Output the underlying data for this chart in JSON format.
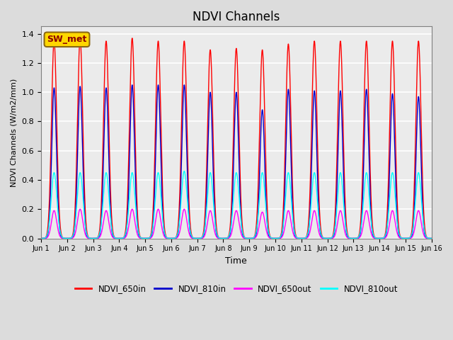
{
  "title": "NDVI Channels",
  "xlabel": "Time",
  "ylabel": "NDVI Channels (W/m2/mm)",
  "annotation_text": "SW_met",
  "annotation_color": "#8B0000",
  "annotation_bg": "#FFD700",
  "legend_labels": [
    "NDVI_650in",
    "NDVI_810in",
    "NDVI_650out",
    "NDVI_810out"
  ],
  "line_colors": [
    "#FF0000",
    "#0000CC",
    "#FF00FF",
    "#00FFFF"
  ],
  "ylim": [
    0,
    1.45
  ],
  "num_days": 15,
  "sigma_650in": 0.1,
  "sigma_810in": 0.09,
  "sigma_650out": 0.1,
  "sigma_810out": 0.11,
  "peak_650in": [
    1.35,
    1.37,
    1.35,
    1.37,
    1.35,
    1.35,
    1.29,
    1.3,
    1.29,
    1.33,
    1.35,
    1.35,
    1.35,
    1.35,
    1.35
  ],
  "peak_810in": [
    1.03,
    1.04,
    1.03,
    1.05,
    1.05,
    1.05,
    1.0,
    1.0,
    0.88,
    1.02,
    1.01,
    1.01,
    1.02,
    0.99,
    0.97
  ],
  "peak_650out": [
    0.19,
    0.2,
    0.19,
    0.2,
    0.2,
    0.2,
    0.19,
    0.19,
    0.18,
    0.19,
    0.19,
    0.19,
    0.19,
    0.19,
    0.19
  ],
  "peak_810out": [
    0.45,
    0.45,
    0.45,
    0.45,
    0.45,
    0.46,
    0.45,
    0.45,
    0.45,
    0.45,
    0.45,
    0.45,
    0.45,
    0.45,
    0.45
  ],
  "plot_bg": "#EBEBEB",
  "fig_bg": "#DCDCDC",
  "tick_labels": [
    "Jun 1",
    "Jun 2",
    "Jun 3",
    "Jun 4",
    "Jun 5",
    "Jun 6",
    "Jun 7",
    "Jun 8",
    "Jun 9",
    "Jun 10",
    "Jun 11",
    "Jun 12",
    "Jun 13",
    "Jun 14",
    "Jun 15",
    "Jun 16"
  ]
}
